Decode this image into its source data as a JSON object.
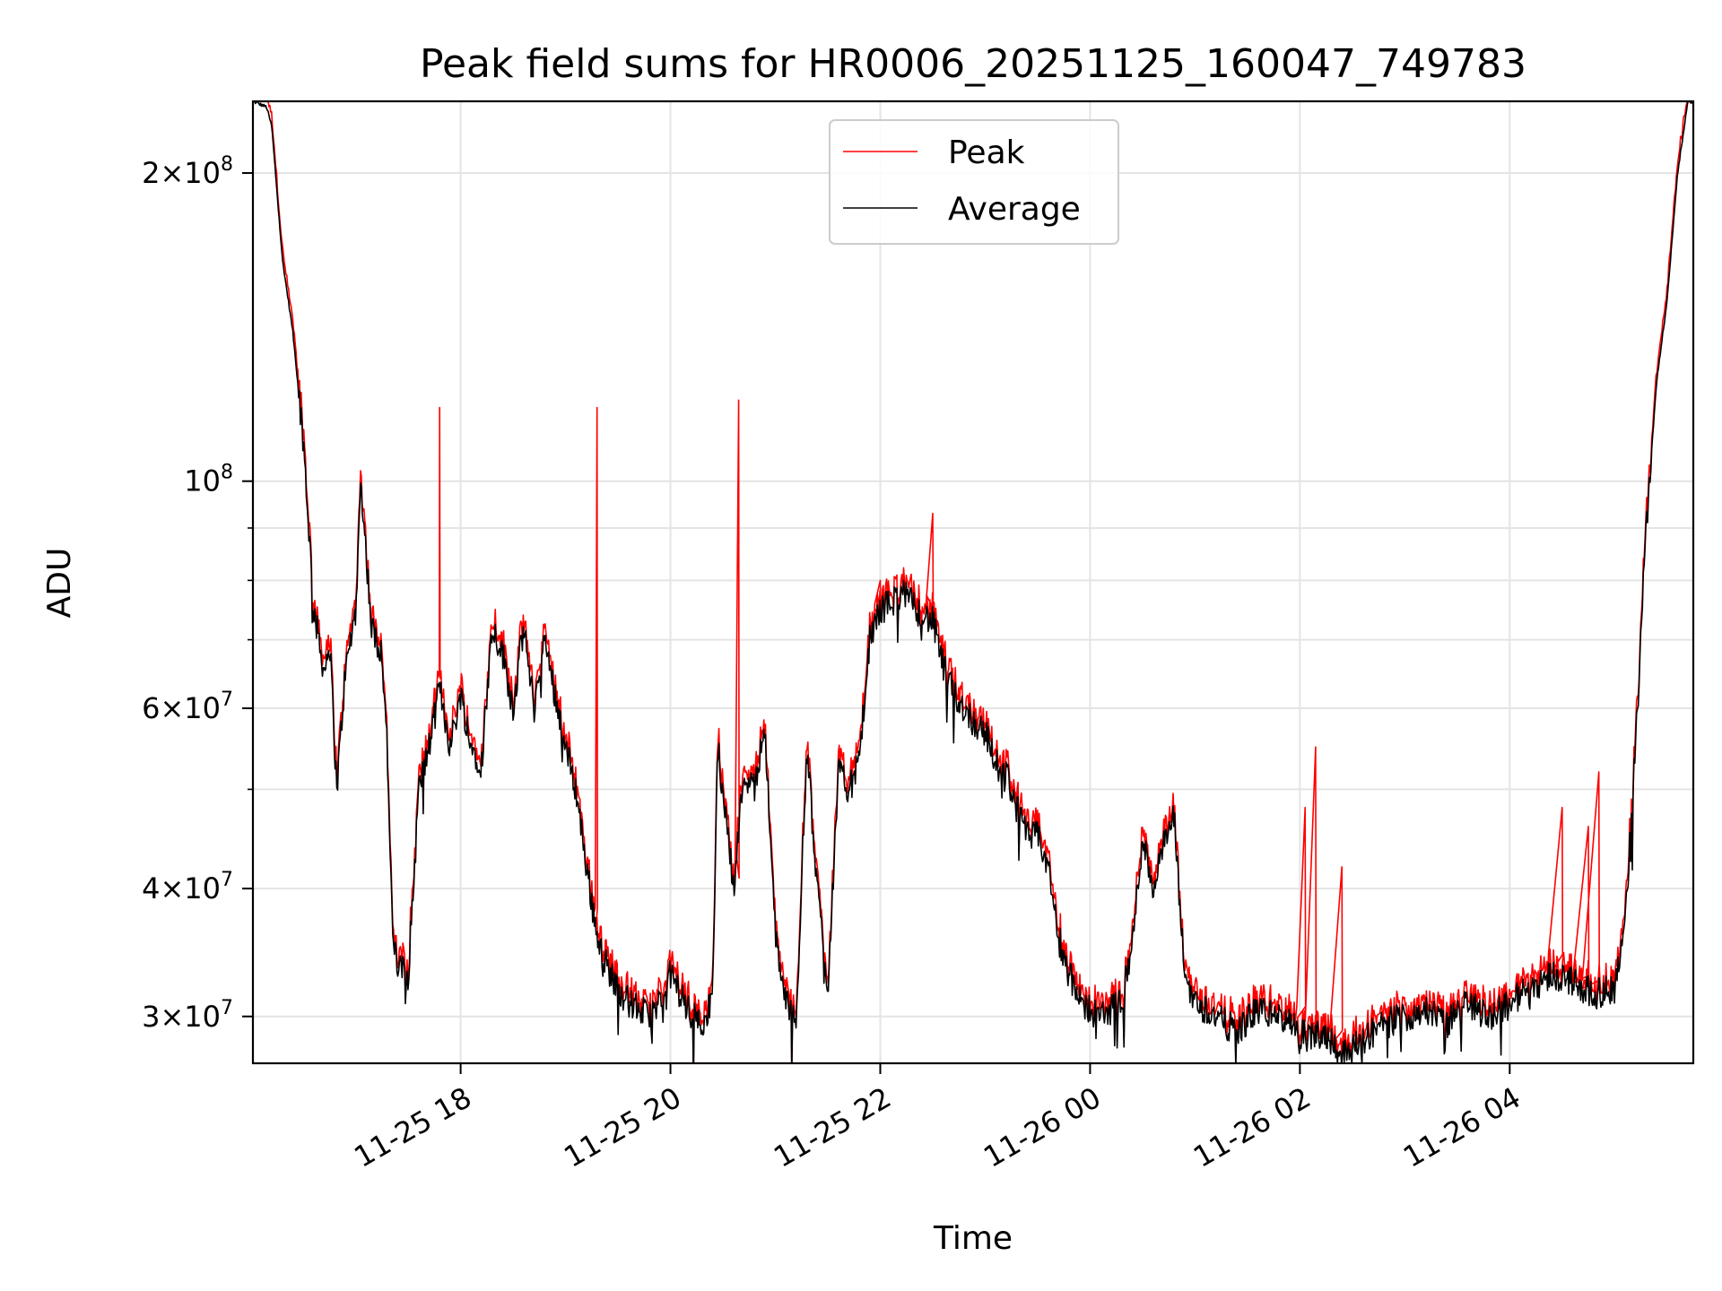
{
  "chart_data": {
    "type": "line",
    "title": "Peak field sums for HR0006_20251125_160047_749783",
    "xlabel": "Time",
    "ylabel": "ADU",
    "yscale": "log",
    "ylim": [
      27000000,
      235000000
    ],
    "xlim_hours": [
      16.02,
      29.75
    ],
    "grid": true,
    "legend_position": "upper center",
    "x_ticks": [
      {
        "hour": 18,
        "label": "11-25 18"
      },
      {
        "hour": 20,
        "label": "11-25 20"
      },
      {
        "hour": 22,
        "label": "11-25 22"
      },
      {
        "hour": 24,
        "label": "11-26 00"
      },
      {
        "hour": 26,
        "label": "11-26 02"
      },
      {
        "hour": 28,
        "label": "11-26 04"
      }
    ],
    "y_ticks": [
      {
        "value": 30000000,
        "base": "3",
        "exp": "7"
      },
      {
        "value": 40000000,
        "base": "4",
        "exp": "7"
      },
      {
        "value": 60000000,
        "base": "6",
        "exp": "7"
      },
      {
        "value": 100000000,
        "base": "",
        "exp": "8"
      },
      {
        "value": 200000000,
        "base": "2",
        "exp": "8"
      }
    ],
    "y_minor_ticks": [
      50000000,
      70000000,
      80000000,
      90000000
    ],
    "average_profile": [
      [
        16.02,
        235000000
      ],
      [
        16.15,
        232000000
      ],
      [
        16.2,
        222000000
      ],
      [
        16.3,
        165000000
      ],
      [
        16.4,
        140000000
      ],
      [
        16.5,
        110000000
      ],
      [
        16.6,
        75000000
      ],
      [
        16.7,
        65000000
      ],
      [
        16.75,
        70000000
      ],
      [
        16.82,
        50000000
      ],
      [
        16.9,
        65000000
      ],
      [
        17.0,
        75000000
      ],
      [
        17.05,
        100000000
      ],
      [
        17.1,
        85000000
      ],
      [
        17.15,
        72000000
      ],
      [
        17.25,
        68000000
      ],
      [
        17.3,
        55000000
      ],
      [
        17.35,
        36000000
      ],
      [
        17.4,
        33500000
      ],
      [
        17.5,
        33000000
      ],
      [
        17.55,
        40000000
      ],
      [
        17.6,
        50000000
      ],
      [
        17.7,
        55000000
      ],
      [
        17.8,
        63000000
      ],
      [
        17.9,
        55000000
      ],
      [
        18.0,
        62000000
      ],
      [
        18.1,
        55000000
      ],
      [
        18.2,
        53000000
      ],
      [
        18.3,
        72000000
      ],
      [
        18.4,
        68000000
      ],
      [
        18.5,
        60000000
      ],
      [
        18.6,
        72000000
      ],
      [
        18.7,
        60000000
      ],
      [
        18.8,
        70000000
      ],
      [
        18.9,
        62000000
      ],
      [
        19.0,
        55000000
      ],
      [
        19.1,
        50000000
      ],
      [
        19.2,
        42000000
      ],
      [
        19.3,
        36000000
      ],
      [
        19.4,
        33500000
      ],
      [
        19.5,
        32000000
      ],
      [
        19.6,
        31000000
      ],
      [
        19.7,
        30500000
      ],
      [
        19.8,
        30000000
      ],
      [
        19.9,
        31000000
      ],
      [
        20.0,
        33000000
      ],
      [
        20.1,
        31500000
      ],
      [
        20.2,
        30000000
      ],
      [
        20.3,
        29600000
      ],
      [
        20.4,
        31000000
      ],
      [
        20.45,
        55000000
      ],
      [
        20.55,
        45000000
      ],
      [
        20.6,
        40000000
      ],
      [
        20.7,
        52000000
      ],
      [
        20.8,
        50000000
      ],
      [
        20.9,
        58000000
      ],
      [
        20.95,
        45000000
      ],
      [
        21.0,
        36000000
      ],
      [
        21.1,
        31000000
      ],
      [
        21.2,
        30000000
      ],
      [
        21.3,
        55000000
      ],
      [
        21.4,
        40000000
      ],
      [
        21.5,
        32000000
      ],
      [
        21.6,
        52000000
      ],
      [
        21.7,
        50000000
      ],
      [
        21.8,
        53000000
      ],
      [
        21.9,
        70000000
      ],
      [
        22.0,
        75000000
      ],
      [
        22.1,
        76000000
      ],
      [
        22.2,
        78000000
      ],
      [
        22.3,
        76000000
      ],
      [
        22.4,
        74000000
      ],
      [
        22.5,
        73000000
      ],
      [
        22.6,
        66000000
      ],
      [
        22.7,
        62000000
      ],
      [
        22.8,
        60000000
      ],
      [
        22.9,
        58000000
      ],
      [
        23.0,
        57000000
      ],
      [
        23.1,
        53000000
      ],
      [
        23.2,
        52000000
      ],
      [
        23.3,
        48000000
      ],
      [
        23.4,
        45000000
      ],
      [
        23.5,
        45000000
      ],
      [
        23.6,
        42000000
      ],
      [
        23.7,
        36000000
      ],
      [
        23.8,
        33000000
      ],
      [
        23.9,
        31000000
      ],
      [
        24.0,
        30500000
      ],
      [
        24.1,
        30000000
      ],
      [
        24.2,
        30500000
      ],
      [
        24.3,
        31000000
      ],
      [
        24.4,
        35000000
      ],
      [
        24.5,
        45000000
      ],
      [
        24.6,
        40000000
      ],
      [
        24.7,
        44000000
      ],
      [
        24.8,
        47000000
      ],
      [
        24.9,
        33000000
      ],
      [
        25.0,
        31000000
      ],
      [
        25.2,
        30000000
      ],
      [
        25.4,
        29000000
      ],
      [
        25.6,
        30500000
      ],
      [
        25.8,
        30000000
      ],
      [
        26.0,
        29000000
      ],
      [
        26.1,
        28500000
      ],
      [
        26.2,
        29000000
      ],
      [
        26.3,
        28500000
      ],
      [
        26.4,
        27500000
      ],
      [
        26.5,
        28000000
      ],
      [
        26.6,
        28500000
      ],
      [
        26.8,
        29500000
      ],
      [
        27.0,
        30000000
      ],
      [
        27.2,
        30500000
      ],
      [
        27.4,
        29500000
      ],
      [
        27.6,
        31000000
      ],
      [
        27.8,
        30000000
      ],
      [
        28.0,
        31000000
      ],
      [
        28.2,
        32000000
      ],
      [
        28.4,
        33000000
      ],
      [
        28.6,
        32500000
      ],
      [
        28.8,
        31500000
      ],
      [
        29.0,
        32000000
      ],
      [
        29.1,
        37000000
      ],
      [
        29.2,
        55000000
      ],
      [
        29.3,
        90000000
      ],
      [
        29.4,
        125000000
      ],
      [
        29.5,
        150000000
      ],
      [
        29.6,
        200000000
      ],
      [
        29.7,
        235000000
      ],
      [
        29.75,
        235000000
      ]
    ],
    "peak_spikes": [
      [
        17.8,
        118000000
      ],
      [
        19.3,
        118000000
      ],
      [
        20.65,
        120000000
      ],
      [
        22.0,
        80000000
      ],
      [
        22.5,
        93000000
      ],
      [
        26.05,
        48000000
      ],
      [
        26.15,
        55000000
      ],
      [
        26.4,
        42000000
      ],
      [
        28.5,
        48000000
      ],
      [
        28.75,
        46000000
      ],
      [
        28.85,
        52000000
      ]
    ],
    "series": [
      {
        "name": "Peak",
        "color": "#ff0000"
      },
      {
        "name": "Average",
        "color": "#000000"
      }
    ]
  }
}
